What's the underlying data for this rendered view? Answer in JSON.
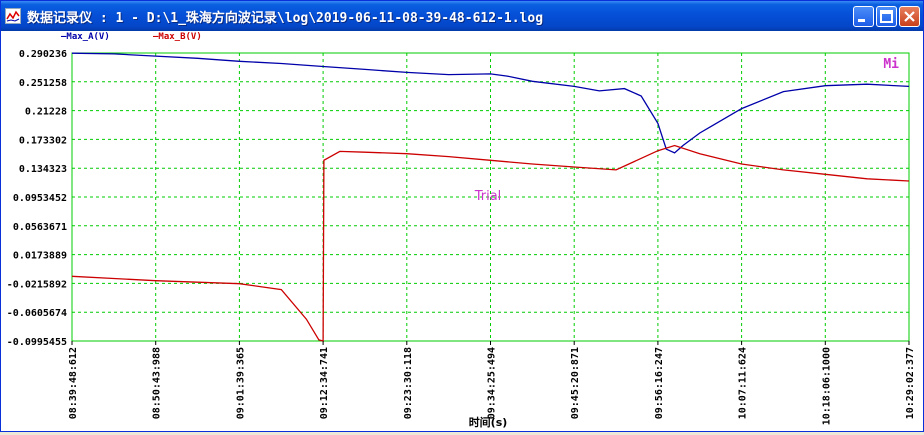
{
  "window": {
    "title": "数据记录仪 : 1 - D:\\1_珠海方向波记录\\log\\2019-06-11-08-39-48-612-1.log"
  },
  "legend": {
    "items": [
      {
        "label": "—Max_A(V)",
        "color": "#0000aa"
      },
      {
        "label": "—Max_B(V)",
        "color": "#cc0000"
      }
    ]
  },
  "corner_label": "Mi",
  "watermark": "Trial",
  "chart_data": {
    "type": "line",
    "xlabel": "时间(s)",
    "ylabel": "",
    "ylim": [
      -0.0995455,
      0.290236
    ],
    "y_ticks": [
      "0.290236",
      "0.251258",
      "0.21228",
      "0.173302",
      "0.134323",
      "0.0953452",
      "0.0563671",
      "0.0173889",
      "-0.0215892",
      "-0.0605674",
      "-0.0995455"
    ],
    "x_ticks": [
      "08:39:48:612",
      "08:50:43:988",
      "09:01:39:365",
      "09:12:34:741",
      "09:23:30:118",
      "09:34:25:494",
      "09:45:20:871",
      "09:56:16:247",
      "10:07:11:624",
      "10:18:06:1000",
      "10:29:02:377"
    ],
    "grid": true,
    "series": [
      {
        "name": "Max_A(V)",
        "color": "#0000aa",
        "points": [
          [
            0,
            0.29
          ],
          [
            0.05,
            0.289
          ],
          [
            0.1,
            0.286
          ],
          [
            0.15,
            0.283
          ],
          [
            0.2,
            0.279
          ],
          [
            0.25,
            0.276
          ],
          [
            0.3,
            0.272
          ],
          [
            0.35,
            0.268
          ],
          [
            0.4,
            0.264
          ],
          [
            0.45,
            0.261
          ],
          [
            0.5,
            0.262
          ],
          [
            0.52,
            0.259
          ],
          [
            0.55,
            0.252
          ],
          [
            0.6,
            0.245
          ],
          [
            0.63,
            0.239
          ],
          [
            0.66,
            0.242
          ],
          [
            0.68,
            0.232
          ],
          [
            0.7,
            0.195
          ],
          [
            0.71,
            0.16
          ],
          [
            0.72,
            0.155
          ],
          [
            0.73,
            0.165
          ],
          [
            0.75,
            0.182
          ],
          [
            0.8,
            0.215
          ],
          [
            0.85,
            0.238
          ],
          [
            0.9,
            0.246
          ],
          [
            0.95,
            0.248
          ],
          [
            1.0,
            0.245
          ]
        ]
      },
      {
        "name": "Max_B(V)",
        "color": "#cc0000",
        "points": [
          [
            0,
            -0.012
          ],
          [
            0.05,
            -0.015
          ],
          [
            0.1,
            -0.018
          ],
          [
            0.15,
            -0.02
          ],
          [
            0.2,
            -0.022
          ],
          [
            0.25,
            -0.03
          ],
          [
            0.28,
            -0.07
          ],
          [
            0.295,
            -0.098
          ],
          [
            0.3,
            -0.0995
          ],
          [
            0.301,
            0.145
          ],
          [
            0.32,
            0.157
          ],
          [
            0.35,
            0.156
          ],
          [
            0.4,
            0.154
          ],
          [
            0.45,
            0.15
          ],
          [
            0.5,
            0.145
          ],
          [
            0.55,
            0.14
          ],
          [
            0.6,
            0.136
          ],
          [
            0.65,
            0.132
          ],
          [
            0.7,
            0.158
          ],
          [
            0.72,
            0.165
          ],
          [
            0.75,
            0.154
          ],
          [
            0.8,
            0.14
          ],
          [
            0.85,
            0.132
          ],
          [
            0.9,
            0.126
          ],
          [
            0.95,
            0.12
          ],
          [
            1.0,
            0.117
          ]
        ]
      }
    ]
  }
}
